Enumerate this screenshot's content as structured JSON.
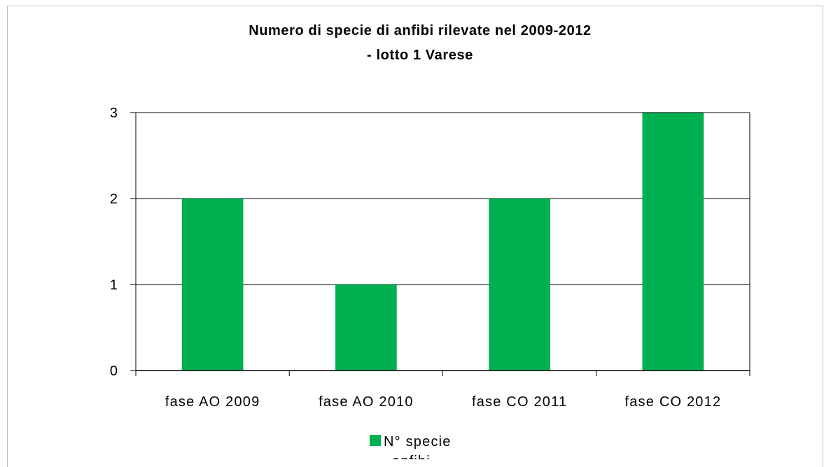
{
  "chart_data": {
    "type": "bar",
    "title_line1": "Numero di specie di anfibi rilevate nel 2009-2012",
    "title_line2": "- lotto 1 Varese",
    "categories": [
      "fase AO 2009",
      "fase AO 2010",
      "fase CO 2011",
      "fase CO 2012"
    ],
    "series": [
      {
        "name": "N° specie",
        "values": [
          2,
          1,
          2,
          3
        ],
        "color": "#00b050"
      }
    ],
    "legend_label_line1": "N° specie",
    "legend_label_line2": "anfibi",
    "xlabel": "",
    "ylabel": "",
    "ylim": [
      0,
      3
    ],
    "yticks": [
      "0",
      "1",
      "2",
      "3"
    ],
    "grid": true,
    "legend_position": "bottom"
  }
}
